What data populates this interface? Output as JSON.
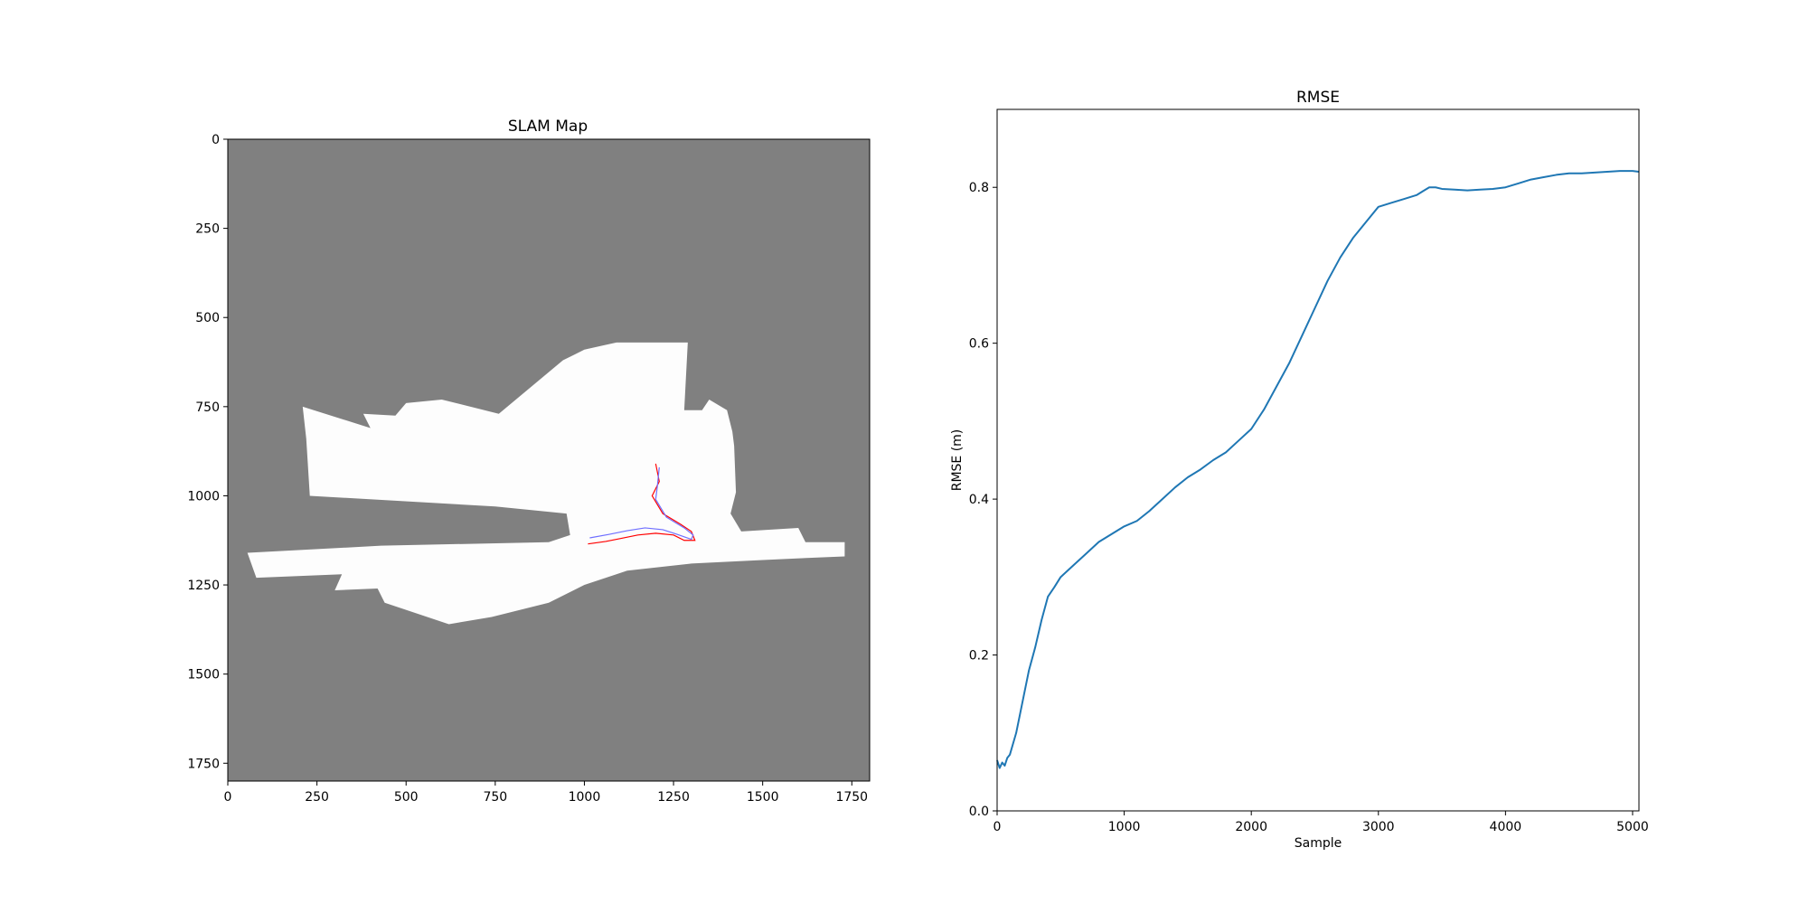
{
  "chart_data": [
    {
      "type": "heatmap",
      "title": "SLAM Map",
      "xlabel": "",
      "ylabel": "",
      "xlim": [
        0,
        1800
      ],
      "ylim": [
        1800,
        0
      ],
      "xticks": [
        "0",
        "250",
        "500",
        "750",
        "1000",
        "1250",
        "1500",
        "1750"
      ],
      "yticks": [
        "0",
        "250",
        "500",
        "750",
        "1000",
        "1250",
        "1500",
        "1750"
      ],
      "grid": false,
      "colors": {
        "unknown": "#808080",
        "free": "#fdfdfd",
        "obstacle": "#000000"
      },
      "free_space_polygon": [
        [
          1090,
          570
        ],
        [
          1290,
          570
        ],
        [
          1280,
          760
        ],
        [
          1330,
          760
        ],
        [
          1350,
          730
        ],
        [
          1400,
          760
        ],
        [
          1415,
          820
        ],
        [
          1420,
          860
        ],
        [
          1425,
          990
        ],
        [
          1410,
          1050
        ],
        [
          1440,
          1100
        ],
        [
          1600,
          1090
        ],
        [
          1620,
          1130
        ],
        [
          1730,
          1130
        ],
        [
          1730,
          1170
        ],
        [
          1610,
          1175
        ],
        [
          1500,
          1180
        ],
        [
          1300,
          1190
        ],
        [
          1120,
          1210
        ],
        [
          1000,
          1250
        ],
        [
          900,
          1300
        ],
        [
          740,
          1340
        ],
        [
          620,
          1360
        ],
        [
          440,
          1300
        ],
        [
          420,
          1260
        ],
        [
          300,
          1265
        ],
        [
          320,
          1220
        ],
        [
          80,
          1230
        ],
        [
          55,
          1160
        ],
        [
          430,
          1140
        ],
        [
          900,
          1130
        ],
        [
          960,
          1110
        ],
        [
          950,
          1050
        ],
        [
          750,
          1030
        ],
        [
          230,
          1000
        ],
        [
          220,
          840
        ],
        [
          210,
          750
        ],
        [
          400,
          810
        ],
        [
          380,
          770
        ],
        [
          470,
          775
        ],
        [
          500,
          740
        ],
        [
          600,
          730
        ],
        [
          760,
          770
        ],
        [
          940,
          620
        ],
        [
          1000,
          590
        ]
      ],
      "paths": [
        {
          "name": "",
          "color": "#ff0000",
          "points": [
            [
              1200,
              910
            ],
            [
              1210,
              960
            ],
            [
              1190,
              1000
            ],
            [
              1220,
              1050
            ],
            [
              1270,
              1080
            ],
            [
              1300,
              1100
            ],
            [
              1310,
              1125
            ],
            [
              1280,
              1125
            ],
            [
              1250,
              1110
            ],
            [
              1200,
              1105
            ],
            [
              1150,
              1110
            ],
            [
              1100,
              1120
            ],
            [
              1060,
              1128
            ],
            [
              1010,
              1135
            ]
          ]
        },
        {
          "name": "",
          "color": "#6f6fff",
          "points": [
            [
              1210,
              920
            ],
            [
              1205,
              970
            ],
            [
              1200,
              1010
            ],
            [
              1230,
              1060
            ],
            [
              1280,
              1090
            ],
            [
              1305,
              1110
            ],
            [
              1300,
              1122
            ],
            [
              1260,
              1108
            ],
            [
              1220,
              1095
            ],
            [
              1170,
              1090
            ],
            [
              1120,
              1098
            ],
            [
              1070,
              1108
            ],
            [
              1015,
              1118
            ]
          ]
        }
      ]
    },
    {
      "type": "line",
      "title": "RMSE",
      "xlabel": "Sample",
      "ylabel": "RMSE (m)",
      "xlim": [
        0,
        5050
      ],
      "ylim": [
        0,
        0.9
      ],
      "xticks": [
        "0",
        "1000",
        "2000",
        "3000",
        "4000",
        "5000"
      ],
      "yticks": [
        "0.0",
        "0.2",
        "0.4",
        "0.6",
        "0.8"
      ],
      "grid": false,
      "series": [
        {
          "name": "",
          "color": "#1f77b4",
          "x": [
            0,
            20,
            40,
            60,
            80,
            100,
            150,
            200,
            250,
            300,
            350,
            400,
            450,
            500,
            600,
            700,
            800,
            900,
            1000,
            1100,
            1200,
            1300,
            1400,
            1500,
            1600,
            1700,
            1800,
            1900,
            2000,
            2100,
            2200,
            2300,
            2400,
            2500,
            2600,
            2700,
            2800,
            2900,
            3000,
            3100,
            3200,
            3300,
            3350,
            3400,
            3450,
            3500,
            3600,
            3700,
            3800,
            3900,
            4000,
            4100,
            4200,
            4300,
            4400,
            4500,
            4600,
            4700,
            4800,
            4900,
            5000,
            5050
          ],
          "y": [
            0.065,
            0.055,
            0.062,
            0.058,
            0.068,
            0.072,
            0.1,
            0.14,
            0.18,
            0.21,
            0.245,
            0.275,
            0.287,
            0.3,
            0.315,
            0.33,
            0.345,
            0.355,
            0.365,
            0.372,
            0.385,
            0.4,
            0.415,
            0.428,
            0.438,
            0.45,
            0.46,
            0.475,
            0.49,
            0.515,
            0.545,
            0.575,
            0.61,
            0.645,
            0.68,
            0.71,
            0.735,
            0.755,
            0.775,
            0.78,
            0.785,
            0.79,
            0.795,
            0.8,
            0.8,
            0.798,
            0.797,
            0.796,
            0.797,
            0.798,
            0.8,
            0.805,
            0.81,
            0.813,
            0.816,
            0.818,
            0.818,
            0.819,
            0.82,
            0.821,
            0.821,
            0.82
          ]
        }
      ]
    }
  ]
}
